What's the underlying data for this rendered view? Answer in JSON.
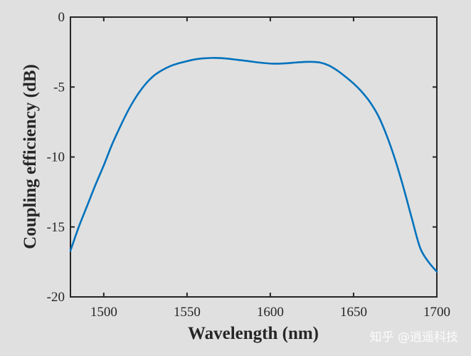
{
  "chart_data": {
    "type": "line",
    "title": "",
    "xlabel": "Wavelength (nm)",
    "ylabel": "Coupling efficiency (dB)",
    "xlim": [
      1480,
      1700
    ],
    "ylim": [
      -20,
      0
    ],
    "xticks": [
      1500,
      1550,
      1600,
      1650,
      1700
    ],
    "yticks": [
      0,
      -5,
      -10,
      -15,
      -20
    ],
    "grid": false,
    "legend": "none",
    "series": [
      {
        "color": "#0072bd",
        "x": [
          1480,
          1485,
          1490,
          1495,
          1500,
          1505,
          1510,
          1515,
          1520,
          1525,
          1530,
          1535,
          1540,
          1545,
          1550,
          1555,
          1560,
          1565,
          1570,
          1575,
          1580,
          1585,
          1590,
          1595,
          1600,
          1605,
          1610,
          1615,
          1620,
          1625,
          1630,
          1635,
          1640,
          1645,
          1650,
          1655,
          1660,
          1665,
          1670,
          1675,
          1680,
          1685,
          1690,
          1695,
          1700
        ],
        "y": [
          -16.7,
          -15.0,
          -13.5,
          -12.0,
          -10.6,
          -9.1,
          -7.8,
          -6.6,
          -5.6,
          -4.8,
          -4.2,
          -3.8,
          -3.5,
          -3.3,
          -3.15,
          -3.02,
          -2.95,
          -2.92,
          -2.93,
          -2.98,
          -3.05,
          -3.12,
          -3.2,
          -3.27,
          -3.32,
          -3.33,
          -3.3,
          -3.25,
          -3.21,
          -3.2,
          -3.25,
          -3.45,
          -3.8,
          -4.25,
          -4.75,
          -5.35,
          -6.1,
          -7.1,
          -8.5,
          -10.2,
          -12.2,
          -14.4,
          -16.5,
          -17.5,
          -18.2
        ]
      }
    ]
  },
  "watermark": "知乎 @逍遥科技"
}
